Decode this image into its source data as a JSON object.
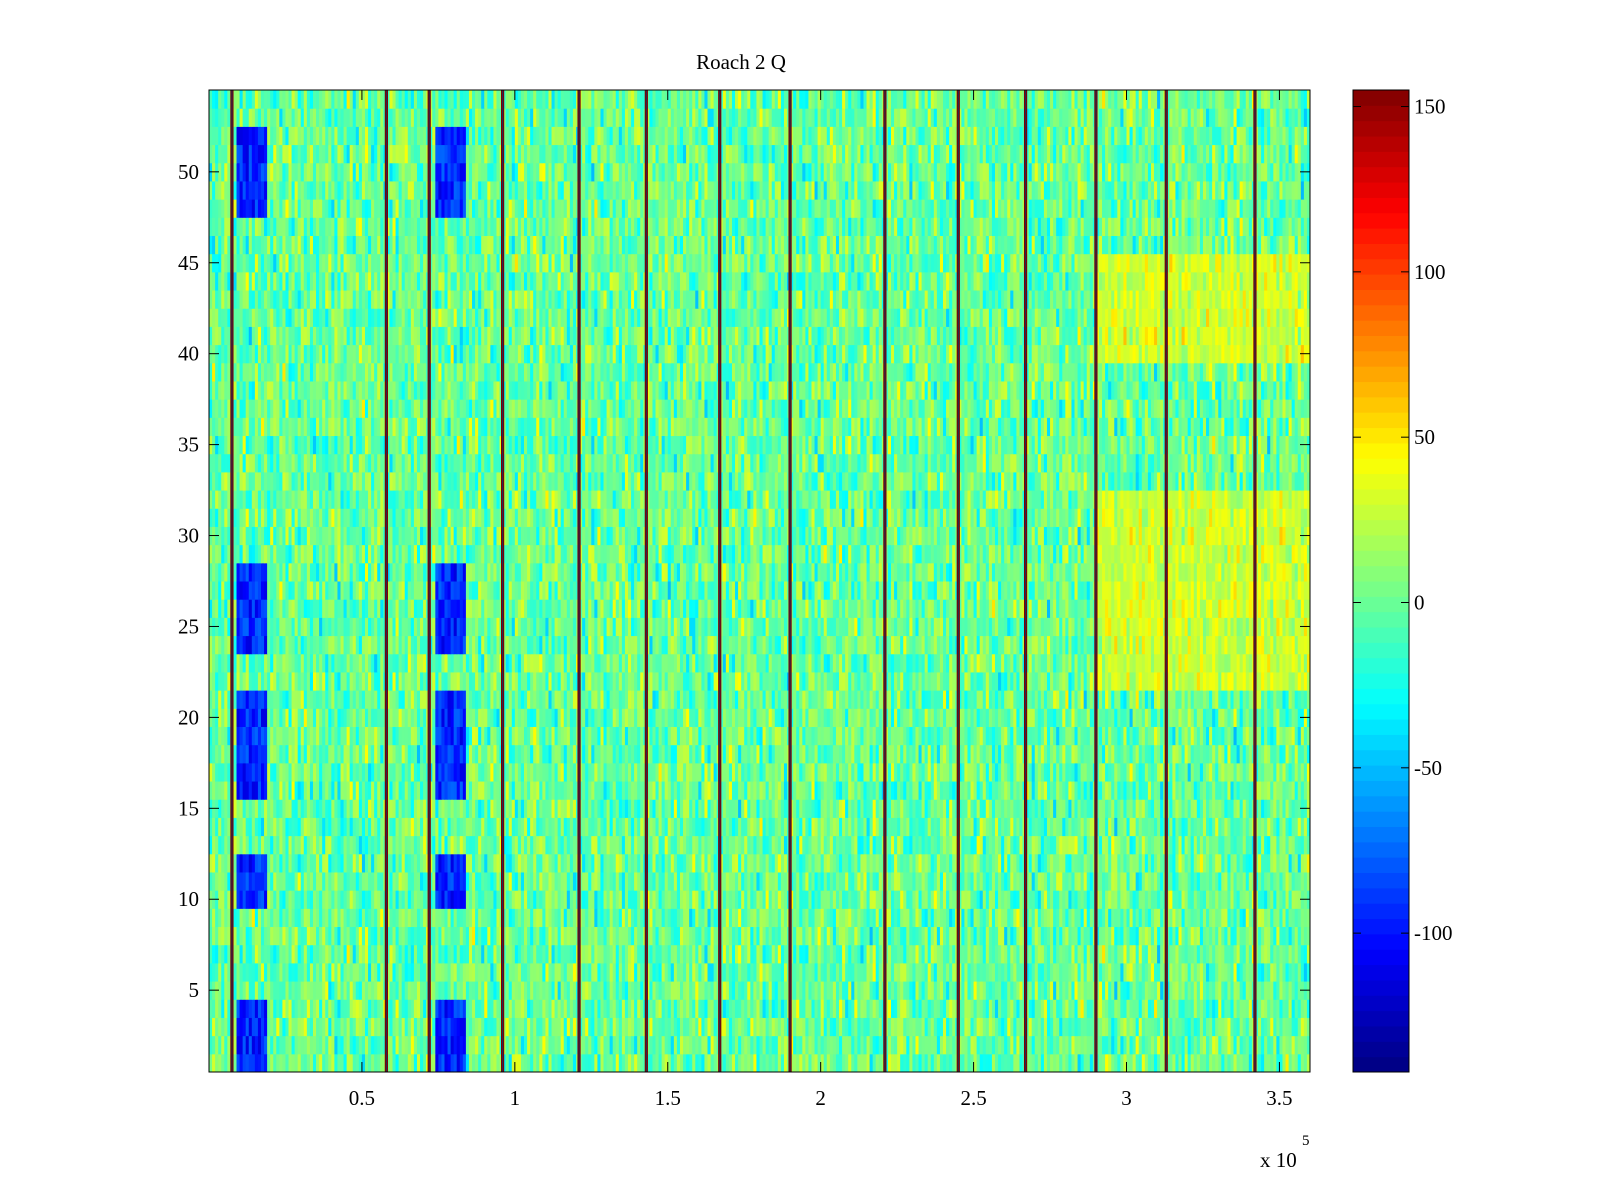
{
  "chart_data": {
    "type": "heatmap",
    "title": "Roach 2 Q",
    "xlabel": "",
    "ylabel": "",
    "x_range": [
      0,
      360000
    ],
    "y_range": [
      0.5,
      54.5
    ],
    "rows": 54,
    "x_ticks": [
      {
        "value": 50000,
        "label": "0.5"
      },
      {
        "value": 100000,
        "label": "1"
      },
      {
        "value": 150000,
        "label": "1.5"
      },
      {
        "value": 200000,
        "label": "2"
      },
      {
        "value": 250000,
        "label": "2.5"
      },
      {
        "value": 300000,
        "label": "3"
      },
      {
        "value": 350000,
        "label": "3.5"
      }
    ],
    "x_multiplier": {
      "base": "x 10",
      "exponent": "5"
    },
    "y_ticks": [
      {
        "value": 5,
        "label": "5"
      },
      {
        "value": 10,
        "label": "10"
      },
      {
        "value": 15,
        "label": "15"
      },
      {
        "value": 20,
        "label": "20"
      },
      {
        "value": 25,
        "label": "25"
      },
      {
        "value": 30,
        "label": "30"
      },
      {
        "value": 35,
        "label": "35"
      },
      {
        "value": 40,
        "label": "40"
      },
      {
        "value": 45,
        "label": "45"
      },
      {
        "value": 50,
        "label": "50"
      }
    ],
    "colorbar": {
      "colormap": "jet",
      "range": [
        -142,
        155
      ],
      "ticks": [
        {
          "value": 150,
          "label": "150"
        },
        {
          "value": 100,
          "label": "100"
        },
        {
          "value": 50,
          "label": "50"
        },
        {
          "value": 0,
          "label": "0"
        },
        {
          "value": -50,
          "label": "-50"
        },
        {
          "value": -100,
          "label": "-100"
        }
      ]
    },
    "background_value_range": [
      -40,
      40
    ],
    "spike_columns_x": [
      7500,
      58000,
      72000,
      96000,
      121000,
      143000,
      167000,
      190000,
      221000,
      245000,
      267000,
      290000,
      313000,
      342000
    ],
    "spike_value": 155,
    "low_value_regions": [
      {
        "x_range": [
          9000,
          19000
        ],
        "rows": [
          [
            1,
            4
          ],
          [
            10,
            12
          ],
          [
            16,
            21
          ],
          [
            24,
            28
          ],
          [
            48,
            52
          ]
        ],
        "value": -95
      },
      {
        "x_range": [
          74000,
          84000
        ],
        "rows": [
          [
            1,
            4
          ],
          [
            10,
            12
          ],
          [
            16,
            21
          ],
          [
            24,
            28
          ],
          [
            48,
            52
          ]
        ],
        "value": -95
      }
    ],
    "high_value_region": {
      "x_range": [
        290000,
        360000
      ],
      "rows": [
        [
          22,
          32
        ],
        [
          40,
          45
        ]
      ],
      "value": 25
    }
  }
}
